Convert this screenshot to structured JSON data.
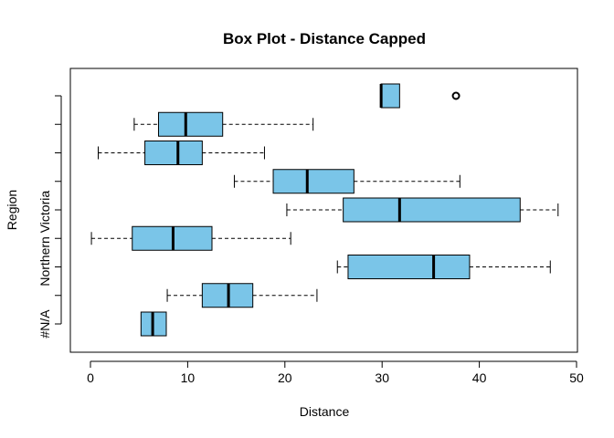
{
  "chart_data": {
    "type": "boxplot",
    "orientation": "horizontal",
    "title": "Box Plot - Distance Capped",
    "xlabel": "Distance",
    "ylabel": "Region",
    "xlim": [
      0,
      50
    ],
    "xticks": [
      0,
      10,
      20,
      30,
      40,
      50
    ],
    "y_tick_labels": [
      "#N/A",
      "",
      "",
      "Northern Victoria",
      "",
      "",
      "",
      "",
      ""
    ],
    "box_fill": "#7AC5E8",
    "grid": false,
    "boxes": [
      {
        "whisker_low": 5.2,
        "q1": 5.2,
        "median": 6.4,
        "q3": 7.8,
        "whisker_high": 7.8,
        "outliers": []
      },
      {
        "whisker_low": 7.9,
        "q1": 11.5,
        "median": 14.2,
        "q3": 16.7,
        "whisker_high": 23.3,
        "outliers": []
      },
      {
        "whisker_low": 25.4,
        "q1": 26.5,
        "median": 35.3,
        "q3": 39.0,
        "whisker_high": 47.3,
        "outliers": []
      },
      {
        "whisker_low": 0.1,
        "q1": 4.3,
        "median": 8.5,
        "q3": 12.5,
        "whisker_high": 20.6,
        "outliers": []
      },
      {
        "whisker_low": 20.2,
        "q1": 26.0,
        "median": 31.8,
        "q3": 44.2,
        "whisker_high": 48.1,
        "outliers": []
      },
      {
        "whisker_low": 14.8,
        "q1": 18.8,
        "median": 22.3,
        "q3": 27.1,
        "whisker_high": 38.0,
        "outliers": []
      },
      {
        "whisker_low": 0.8,
        "q1": 5.6,
        "median": 9.0,
        "q3": 11.5,
        "whisker_high": 17.9,
        "outliers": []
      },
      {
        "whisker_low": 4.5,
        "q1": 7.0,
        "median": 9.8,
        "q3": 13.6,
        "whisker_high": 22.9,
        "outliers": []
      },
      {
        "whisker_low": 29.9,
        "q1": 29.9,
        "median": 29.9,
        "q3": 31.8,
        "whisker_high": 31.8,
        "outliers": [
          37.6
        ]
      }
    ]
  }
}
